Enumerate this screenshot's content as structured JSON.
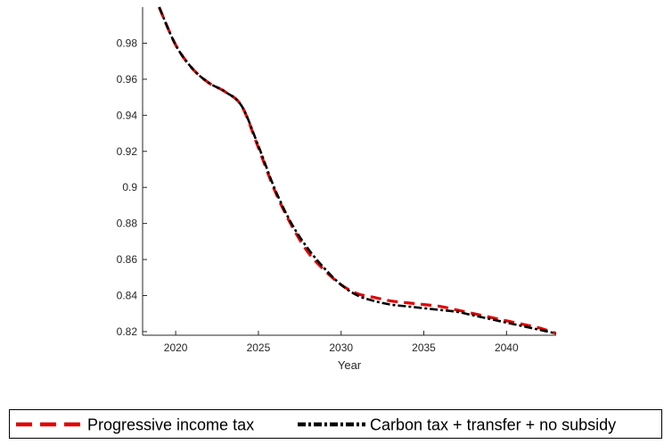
{
  "chart_data": {
    "type": "line",
    "title": "",
    "xlabel": "Year",
    "ylabel": "",
    "xlim": [
      2018,
      2043
    ],
    "ylim": [
      0.818,
      1.0
    ],
    "xticks": [
      2020,
      2025,
      2030,
      2035,
      2040
    ],
    "xtick_labels": [
      "2020",
      "2025",
      "2030",
      "2035",
      "2040"
    ],
    "yticks": [
      0.82,
      0.84,
      0.86,
      0.88,
      0.9,
      0.92,
      0.94,
      0.96,
      0.98
    ],
    "ytick_labels": [
      "0.82",
      "0.84",
      "0.86",
      "0.88",
      "0.9",
      "0.92",
      "0.94",
      "0.96",
      "0.98"
    ],
    "grid": false,
    "legend_position": "bottom",
    "series": [
      {
        "name": "Progressive income tax",
        "color": "#e00000",
        "style": "dashed",
        "x": [
          2019,
          2020,
          2021,
          2022,
          2023,
          2024,
          2025,
          2026,
          2027,
          2028,
          2029,
          2030,
          2031,
          2032,
          2033,
          2034,
          2035,
          2036,
          2037,
          2038,
          2039,
          2040,
          2041,
          2042,
          2043
        ],
        "y": [
          1.0,
          0.979,
          0.966,
          0.958,
          0.953,
          0.945,
          0.922,
          0.898,
          0.879,
          0.864,
          0.854,
          0.846,
          0.841,
          0.839,
          0.837,
          0.836,
          0.835,
          0.834,
          0.832,
          0.83,
          0.828,
          0.826,
          0.824,
          0.822,
          0.819
        ]
      },
      {
        "name": "Carbon tax + transfer + no subsidy",
        "color": "#000000",
        "style": "dashdot",
        "x": [
          2019,
          2020,
          2021,
          2022,
          2023,
          2024,
          2025,
          2026,
          2027,
          2028,
          2029,
          2030,
          2031,
          2032,
          2033,
          2034,
          2035,
          2036,
          2037,
          2038,
          2039,
          2040,
          2041,
          2042,
          2043
        ],
        "y": [
          1.0,
          0.979,
          0.966,
          0.958,
          0.953,
          0.945,
          0.923,
          0.899,
          0.88,
          0.866,
          0.855,
          0.846,
          0.84,
          0.837,
          0.835,
          0.834,
          0.833,
          0.832,
          0.831,
          0.829,
          0.827,
          0.825,
          0.823,
          0.821,
          0.819
        ]
      }
    ]
  }
}
